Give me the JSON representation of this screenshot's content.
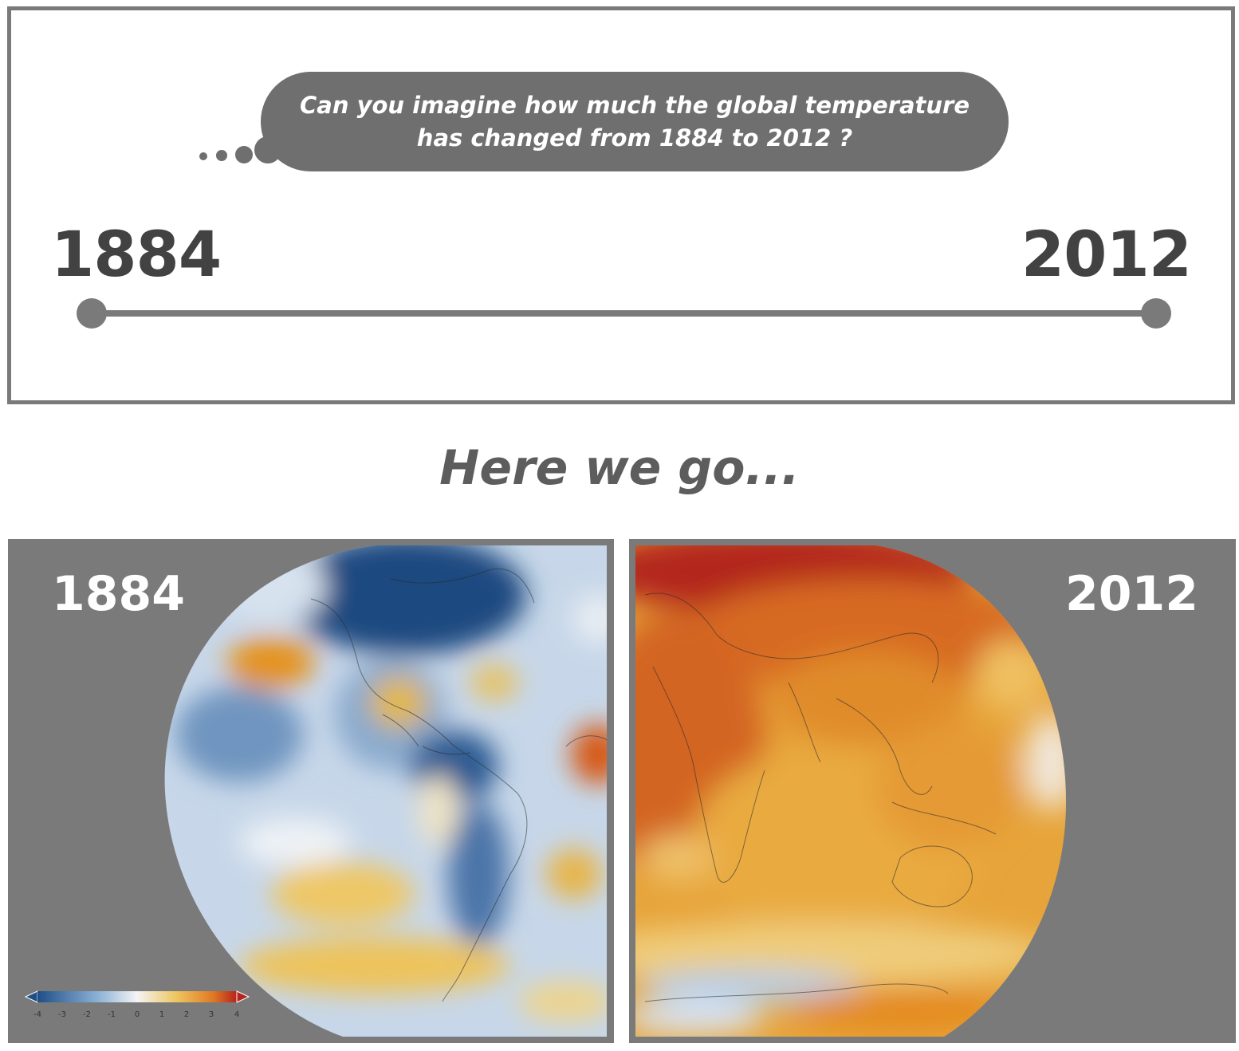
{
  "question": {
    "line1": "Can you imagine how much the global temperature",
    "line2": "has changed from 1884 to 2012 ?"
  },
  "timeline": {
    "start_year": "1884",
    "end_year": "2012"
  },
  "heading": "Here we go...",
  "maps": {
    "left": {
      "year": "1884"
    },
    "right": {
      "year": "2012"
    }
  },
  "colorbar": {
    "ticks": [
      "-4",
      "-3",
      "-2",
      "-1",
      "0",
      "1",
      "2",
      "3",
      "4"
    ]
  },
  "colors": {
    "frame": "#7a7a7a",
    "bubble": "#6f6f6f",
    "year_text": "#424242",
    "heading_text": "#5d5d5d",
    "cold": "#1f4e86",
    "neutral": "#f4f4f4",
    "warm": "#e8a53a",
    "hot": "#b5241d"
  }
}
